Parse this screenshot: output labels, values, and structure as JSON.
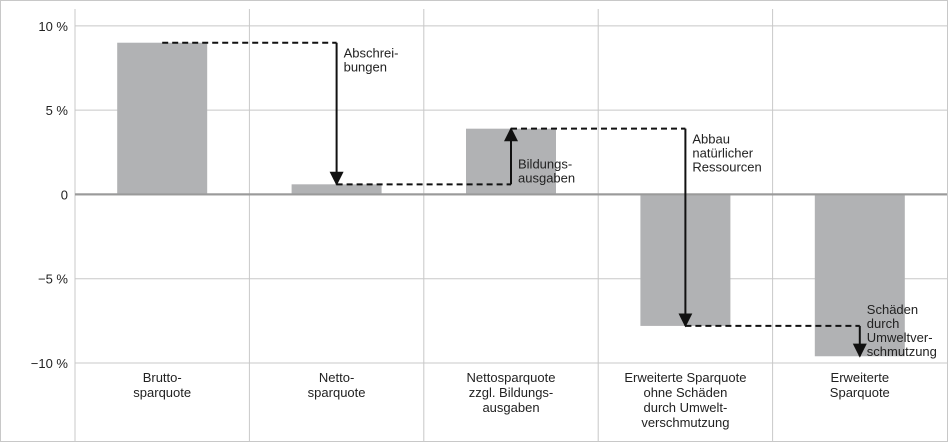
{
  "chart_data": {
    "type": "bar",
    "categories": [
      "Brutto-\nsparquote",
      "Netto-\nsparquote",
      "Nettosparquote\nzzgl. Bildungs-\nausgaben",
      "Erweiterte Sparquote\nohne Schäden\ndurch Umwelt-\nverschmutzung",
      "Erweiterte\nSparquote"
    ],
    "values": [
      9.0,
      0.6,
      3.9,
      -7.8,
      -9.6
    ],
    "color": "#b1b2b4",
    "ylim": [
      -10,
      11
    ],
    "yticks": [
      {
        "value": -10,
        "label": "−10 %"
      },
      {
        "value": -5,
        "label": "−5 %"
      },
      0,
      {
        "value": 5,
        "label": "5 %"
      },
      {
        "value": 10,
        "label": "10 %"
      }
    ],
    "grid": true,
    "annotations": [
      "Abschrei-\nbungen",
      "Bildungs-\nausgaben",
      "Abbau\nnatürlicher\nRessourcen",
      "Schäden\ndurch\nUmweltver-\nschmutzung"
    ]
  }
}
